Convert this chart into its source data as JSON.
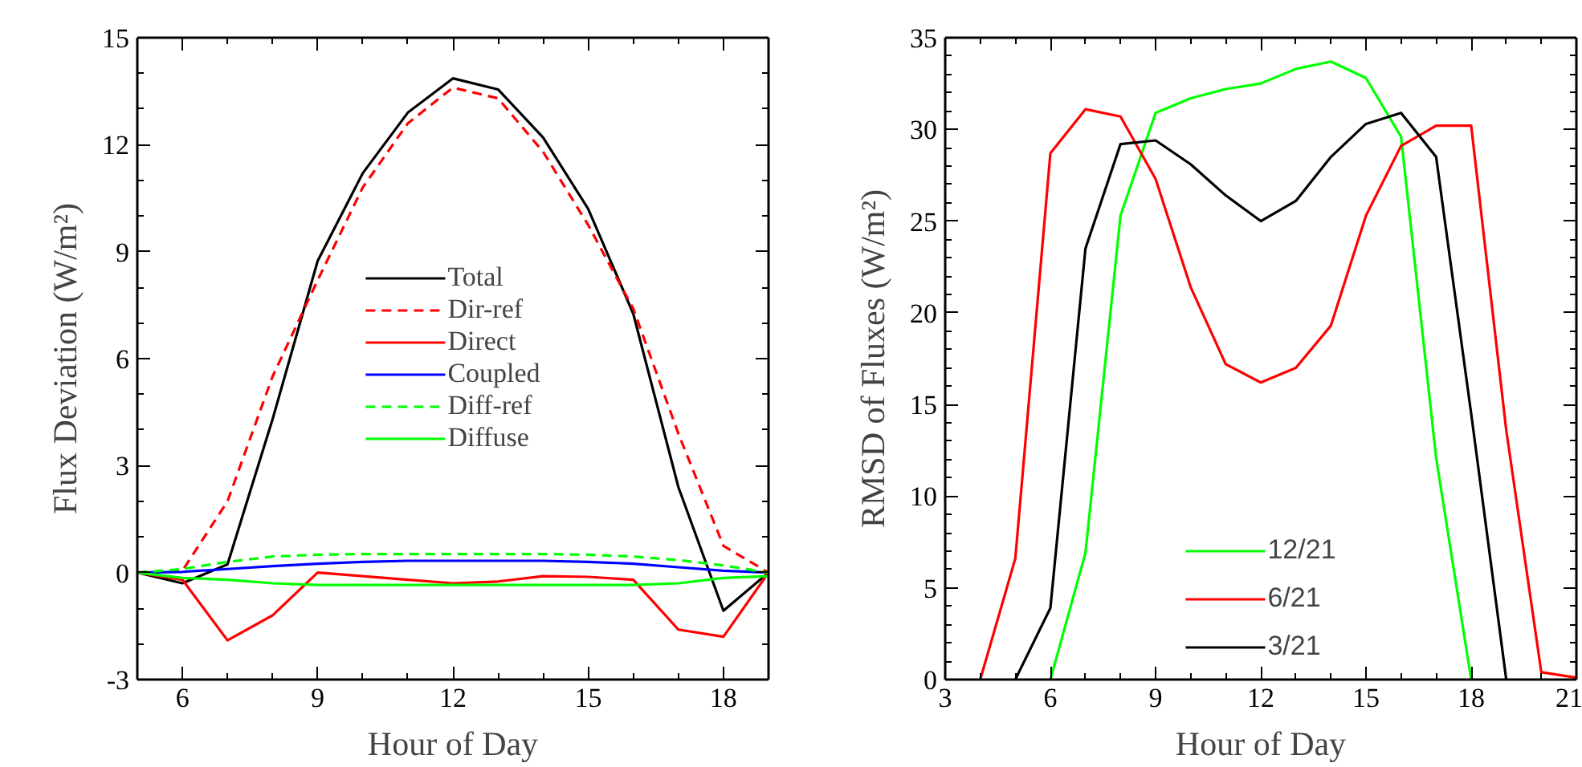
{
  "chart_data": [
    {
      "type": "line",
      "xlabel": "Hour of Day",
      "ylabel": "Flux Deviation (W/m²)",
      "x": [
        5,
        6,
        7,
        8,
        9,
        10,
        11,
        12,
        13,
        14,
        15,
        16,
        17,
        18,
        19
      ],
      "xlim": [
        5,
        19
      ],
      "xticks": [
        6,
        9,
        12,
        15,
        18
      ],
      "ylim": [
        -3,
        15
      ],
      "yticks": [
        -3,
        0,
        3,
        6,
        9,
        12,
        15
      ],
      "legend": "center",
      "grid": false,
      "marker": "none",
      "series": [
        {
          "name": "Total",
          "color": "#000000",
          "line_style": "solid",
          "values": [
            0,
            -0.3,
            0.23,
            4.3,
            8.74,
            11.2,
            12.9,
            13.86,
            13.55,
            12.2,
            10.2,
            7.26,
            2.4,
            -1.07,
            0
          ]
        },
        {
          "name": "Dir-ref",
          "color": "#ff0000",
          "line_style": "dashed",
          "values": [
            0,
            0.05,
            2.0,
            5.5,
            8.2,
            10.8,
            12.6,
            13.6,
            13.3,
            11.8,
            9.75,
            7.4,
            3.9,
            0.75,
            0
          ]
        },
        {
          "name": "Direct",
          "color": "#ff0000",
          "line_style": "solid",
          "values": [
            0,
            -0.2,
            -1.9,
            -1.2,
            0.0,
            -0.1,
            -0.2,
            -0.3,
            -0.25,
            -0.1,
            -0.12,
            -0.2,
            -1.6,
            -1.8,
            0
          ]
        },
        {
          "name": "Coupled",
          "color": "#0000ff",
          "line_style": "solid",
          "values": [
            0,
            0.02,
            0.1,
            0.18,
            0.25,
            0.3,
            0.33,
            0.33,
            0.33,
            0.33,
            0.3,
            0.25,
            0.15,
            0.05,
            0
          ]
        },
        {
          "name": "Diff-ref",
          "color": "#00ff00",
          "line_style": "dashed",
          "values": [
            0,
            0.1,
            0.3,
            0.45,
            0.5,
            0.52,
            0.52,
            0.52,
            0.52,
            0.52,
            0.5,
            0.45,
            0.35,
            0.2,
            0
          ]
        },
        {
          "name": "Diffuse",
          "color": "#00ff00",
          "line_style": "solid",
          "values": [
            0,
            -0.15,
            -0.2,
            -0.3,
            -0.35,
            -0.35,
            -0.35,
            -0.35,
            -0.35,
            -0.35,
            -0.35,
            -0.35,
            -0.3,
            -0.15,
            -0.1
          ]
        }
      ]
    },
    {
      "type": "line",
      "xlabel": "Hour of Day",
      "ylabel": "RMSD of Fluxes (W/m²)",
      "xlim": [
        3,
        21
      ],
      "xticks": [
        3,
        6,
        9,
        12,
        15,
        18,
        21
      ],
      "ylim": [
        0,
        35
      ],
      "yticks": [
        0,
        5,
        10,
        15,
        20,
        25,
        30,
        35
      ],
      "legend": "bottom",
      "grid": false,
      "marker": "none",
      "series": [
        {
          "name": "12/21",
          "color": "#00ff00",
          "line_style": "solid",
          "x": [
            6,
            7,
            8,
            9,
            10,
            11,
            12,
            13,
            14,
            15,
            16,
            17,
            18
          ],
          "values": [
            0,
            6.9,
            25.3,
            30.9,
            31.7,
            32.2,
            32.5,
            33.3,
            33.7,
            32.8,
            29.6,
            12.1,
            0
          ]
        },
        {
          "name": "6/21",
          "color": "#ff0000",
          "line_style": "solid",
          "x": [
            4,
            5,
            6,
            7,
            8,
            9,
            10,
            11,
            12,
            13,
            14,
            15,
            16,
            17,
            18,
            19,
            20,
            21
          ],
          "values": [
            0,
            6.6,
            28.7,
            31.1,
            30.7,
            27.3,
            21.4,
            17.2,
            16.2,
            17.0,
            19.3,
            25.3,
            29.1,
            30.2,
            30.2,
            13.6,
            0.4,
            0.1
          ]
        },
        {
          "name": "3/21",
          "color": "#000000",
          "line_style": "solid",
          "x": [
            5,
            6,
            7,
            8,
            9,
            10,
            11,
            12,
            13,
            14,
            15,
            16,
            17,
            18,
            19
          ],
          "values": [
            0,
            3.9,
            23.5,
            29.2,
            29.4,
            28.1,
            26.4,
            25.0,
            26.1,
            28.5,
            30.3,
            30.9,
            28.5,
            14.5,
            0
          ]
        }
      ]
    }
  ]
}
